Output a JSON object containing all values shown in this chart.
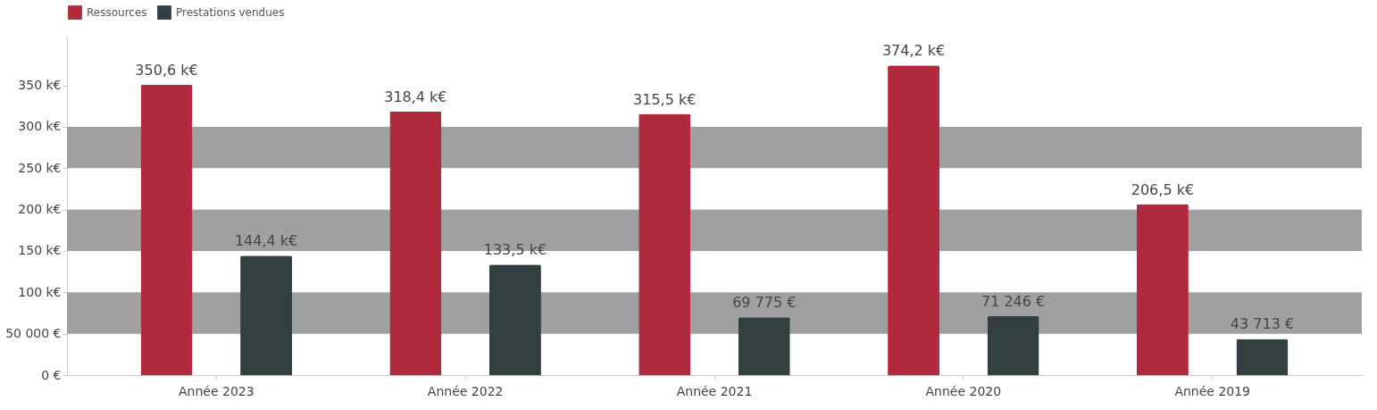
{
  "chart_data": {
    "type": "bar",
    "categories": [
      "Année 2023",
      "Année 2022",
      "Année 2021",
      "Année 2020",
      "Année 2019"
    ],
    "series": [
      {
        "name": "Ressources",
        "color": "#b0293d",
        "values": [
          350600,
          318400,
          315500,
          374200,
          206500
        ],
        "value_labels": [
          "350,6 k€",
          "318,4 k€",
          "315,5 k€",
          "374,2 k€",
          "206,5 k€"
        ]
      },
      {
        "name": "Prestations vendues",
        "color": "#323f41",
        "values": [
          144400,
          133500,
          69775,
          71246,
          43713
        ],
        "value_labels": [
          "144,4 k€",
          "133,5 k€",
          "69 775 €",
          "71 246 €",
          "43 713 €"
        ]
      }
    ],
    "ylim": [
      0,
      410000
    ],
    "yticks": [
      {
        "value": 0,
        "label": "0 €"
      },
      {
        "value": 50000,
        "label": "50 000 €"
      },
      {
        "value": 100000,
        "label": "100 k€"
      },
      {
        "value": 150000,
        "label": "150 k€"
      },
      {
        "value": 200000,
        "label": "200 k€"
      },
      {
        "value": 250000,
        "label": "250 k€"
      },
      {
        "value": 300000,
        "label": "300 k€"
      },
      {
        "value": 350000,
        "label": "350 k€"
      }
    ],
    "bands": [
      {
        "axis": "y",
        "from": 50000,
        "to": 100000,
        "color": "#a0a0a0"
      },
      {
        "axis": "y",
        "from": 150000,
        "to": 200000,
        "color": "#a0a0a0"
      },
      {
        "axis": "y",
        "from": 250000,
        "to": 300000,
        "color": "#a0a0a0"
      }
    ],
    "grid": false,
    "legend": "top"
  }
}
